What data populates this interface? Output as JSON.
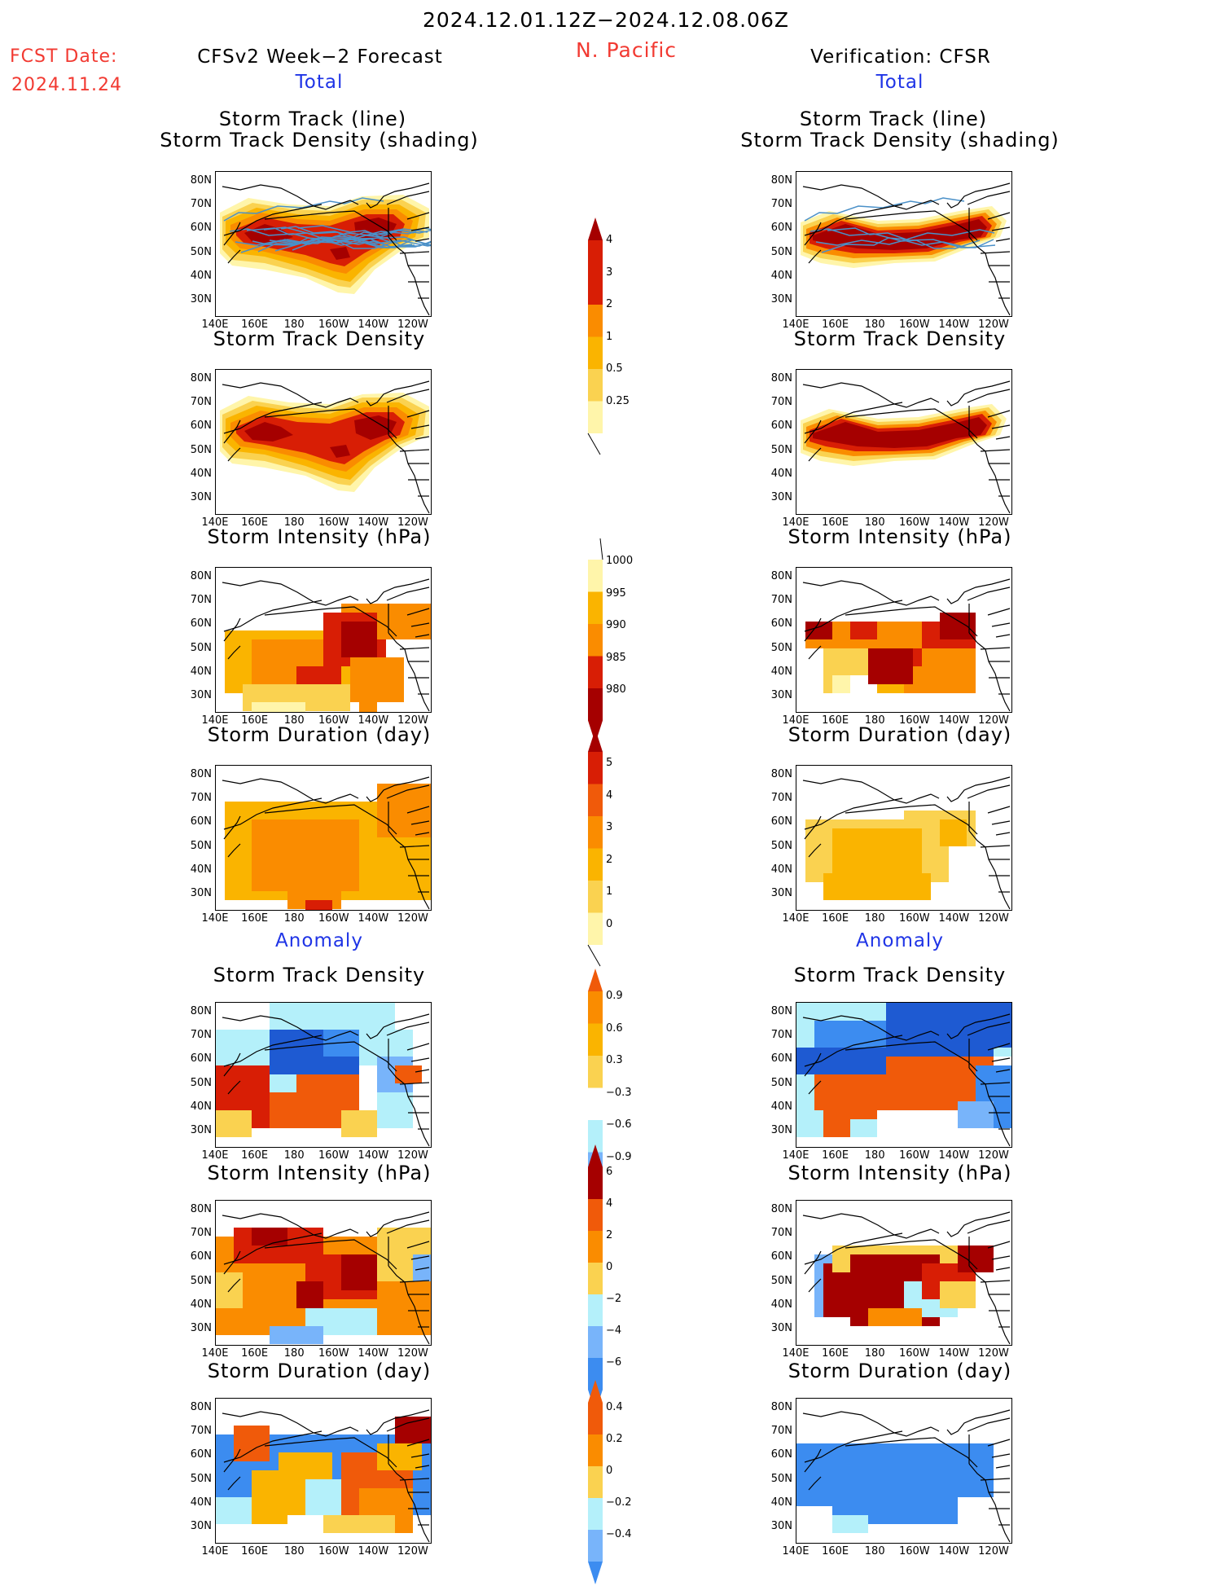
{
  "header": {
    "period": "2024.12.01.12Z−2024.12.08.06Z",
    "region": "N. Pacific",
    "fcst_date_label": "FCST Date:",
    "fcst_date_value": "2024.11.24",
    "left_title": "CFSv2 Week−2 Forecast",
    "right_title": "Verification: CFSR",
    "total_label": "Total",
    "anomaly_label": "Anomaly"
  },
  "panel_titles": {
    "track_line": "Storm Track (line)",
    "track_density_shading": "Storm Track Density (shading)",
    "track_density": "Storm Track Density",
    "intensity": "Storm Intensity (hPa)",
    "duration": "Storm Duration (day)"
  },
  "axes": {
    "lat_labels": [
      "80N",
      "70N",
      "60N",
      "50N",
      "40N",
      "30N"
    ],
    "lon_labels": [
      "140E",
      "160E",
      "180",
      "160W",
      "140W",
      "120W"
    ]
  },
  "colorbars": {
    "density_total": [
      "4",
      "3",
      "2",
      "1",
      "0.5",
      "0.25"
    ],
    "intensity_total": [
      "1000",
      "995",
      "990",
      "985",
      "980"
    ],
    "duration_total": [
      "5",
      "4",
      "3",
      "2",
      "1",
      "0"
    ],
    "density_anomaly": [
      "0.9",
      "0.6",
      "0.3",
      "−0.3",
      "−0.6",
      "−0.9"
    ],
    "intensity_anomaly": [
      "6",
      "4",
      "2",
      "0",
      "−2",
      "−4",
      "−6"
    ],
    "duration_anomaly": [
      "0.4",
      "0.2",
      "0",
      "−0.2",
      "−0.4"
    ]
  },
  "colors": {
    "dark_red": "#a50000",
    "red": "#d81e05",
    "orange_red": "#f05a0a",
    "orange": "#fa8c00",
    "light_orange": "#fab400",
    "yellow": "#fad250",
    "pale_yellow": "#fff5aa",
    "light_blue": "#b4f0fa",
    "mid_blue": "#78b4fa",
    "blue": "#3c8cf0",
    "dark_blue": "#1e5ad2",
    "track_line": "#4a90c8"
  }
}
